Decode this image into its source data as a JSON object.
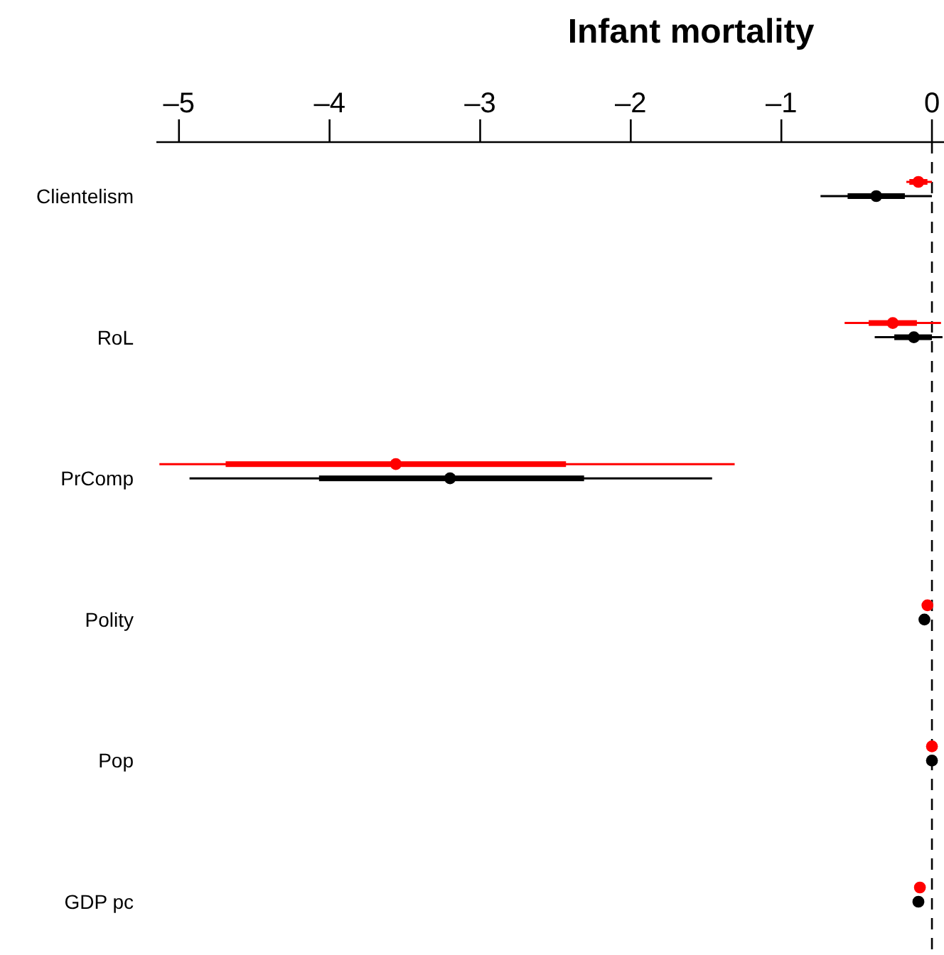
{
  "chart_data": {
    "type": "scatter",
    "orientation": "horizontal",
    "title": "Infant mortality",
    "categories": [
      "Clientelism",
      "RoL",
      "PrComp",
      "Polity",
      "Pop",
      "GDP pc"
    ],
    "xlim": [
      -5.15,
      0.08
    ],
    "xticks": [
      {
        "value": -5,
        "label": "–5"
      },
      {
        "value": -4,
        "label": "–4"
      },
      {
        "value": -3,
        "label": "–3"
      },
      {
        "value": -2,
        "label": "–2"
      },
      {
        "value": -1,
        "label": "–1"
      },
      0
    ],
    "marker": "circle",
    "grid": false,
    "ref_lines": [
      {
        "axis": "x",
        "value": 0,
        "line_style": "dashed",
        "color": "#000000"
      }
    ],
    "series": [
      {
        "type": "bar",
        "color": "#ff0000",
        "base": [
          -0.15,
          -0.42,
          -4.69,
          null,
          null,
          null
        ],
        "values": [
          0.12,
          0.32,
          2.26,
          null,
          null,
          null
        ]
      },
      {
        "color": "#ff0000",
        "values": [
          -0.09,
          -0.26,
          -3.56,
          -0.03,
          0.0,
          -0.08
        ],
        "errors": [
          [
            -0.17,
            0.0
          ],
          [
            -0.58,
            0.06
          ],
          [
            -5.13,
            -1.31
          ],
          null,
          null,
          null
        ]
      },
      {
        "type": "bar",
        "color": "#000000",
        "base": [
          -0.56,
          -0.25,
          -4.07,
          null,
          null,
          null
        ],
        "values": [
          0.38,
          0.25,
          1.76,
          null,
          null,
          null
        ]
      },
      {
        "color": "#000000",
        "values": [
          -0.37,
          -0.12,
          -3.2,
          -0.05,
          0.0,
          -0.09
        ],
        "errors": [
          [
            -0.74,
            0.0
          ],
          [
            -0.38,
            0.07
          ],
          [
            -4.93,
            -1.46
          ],
          null,
          null,
          null
        ]
      }
    ]
  }
}
